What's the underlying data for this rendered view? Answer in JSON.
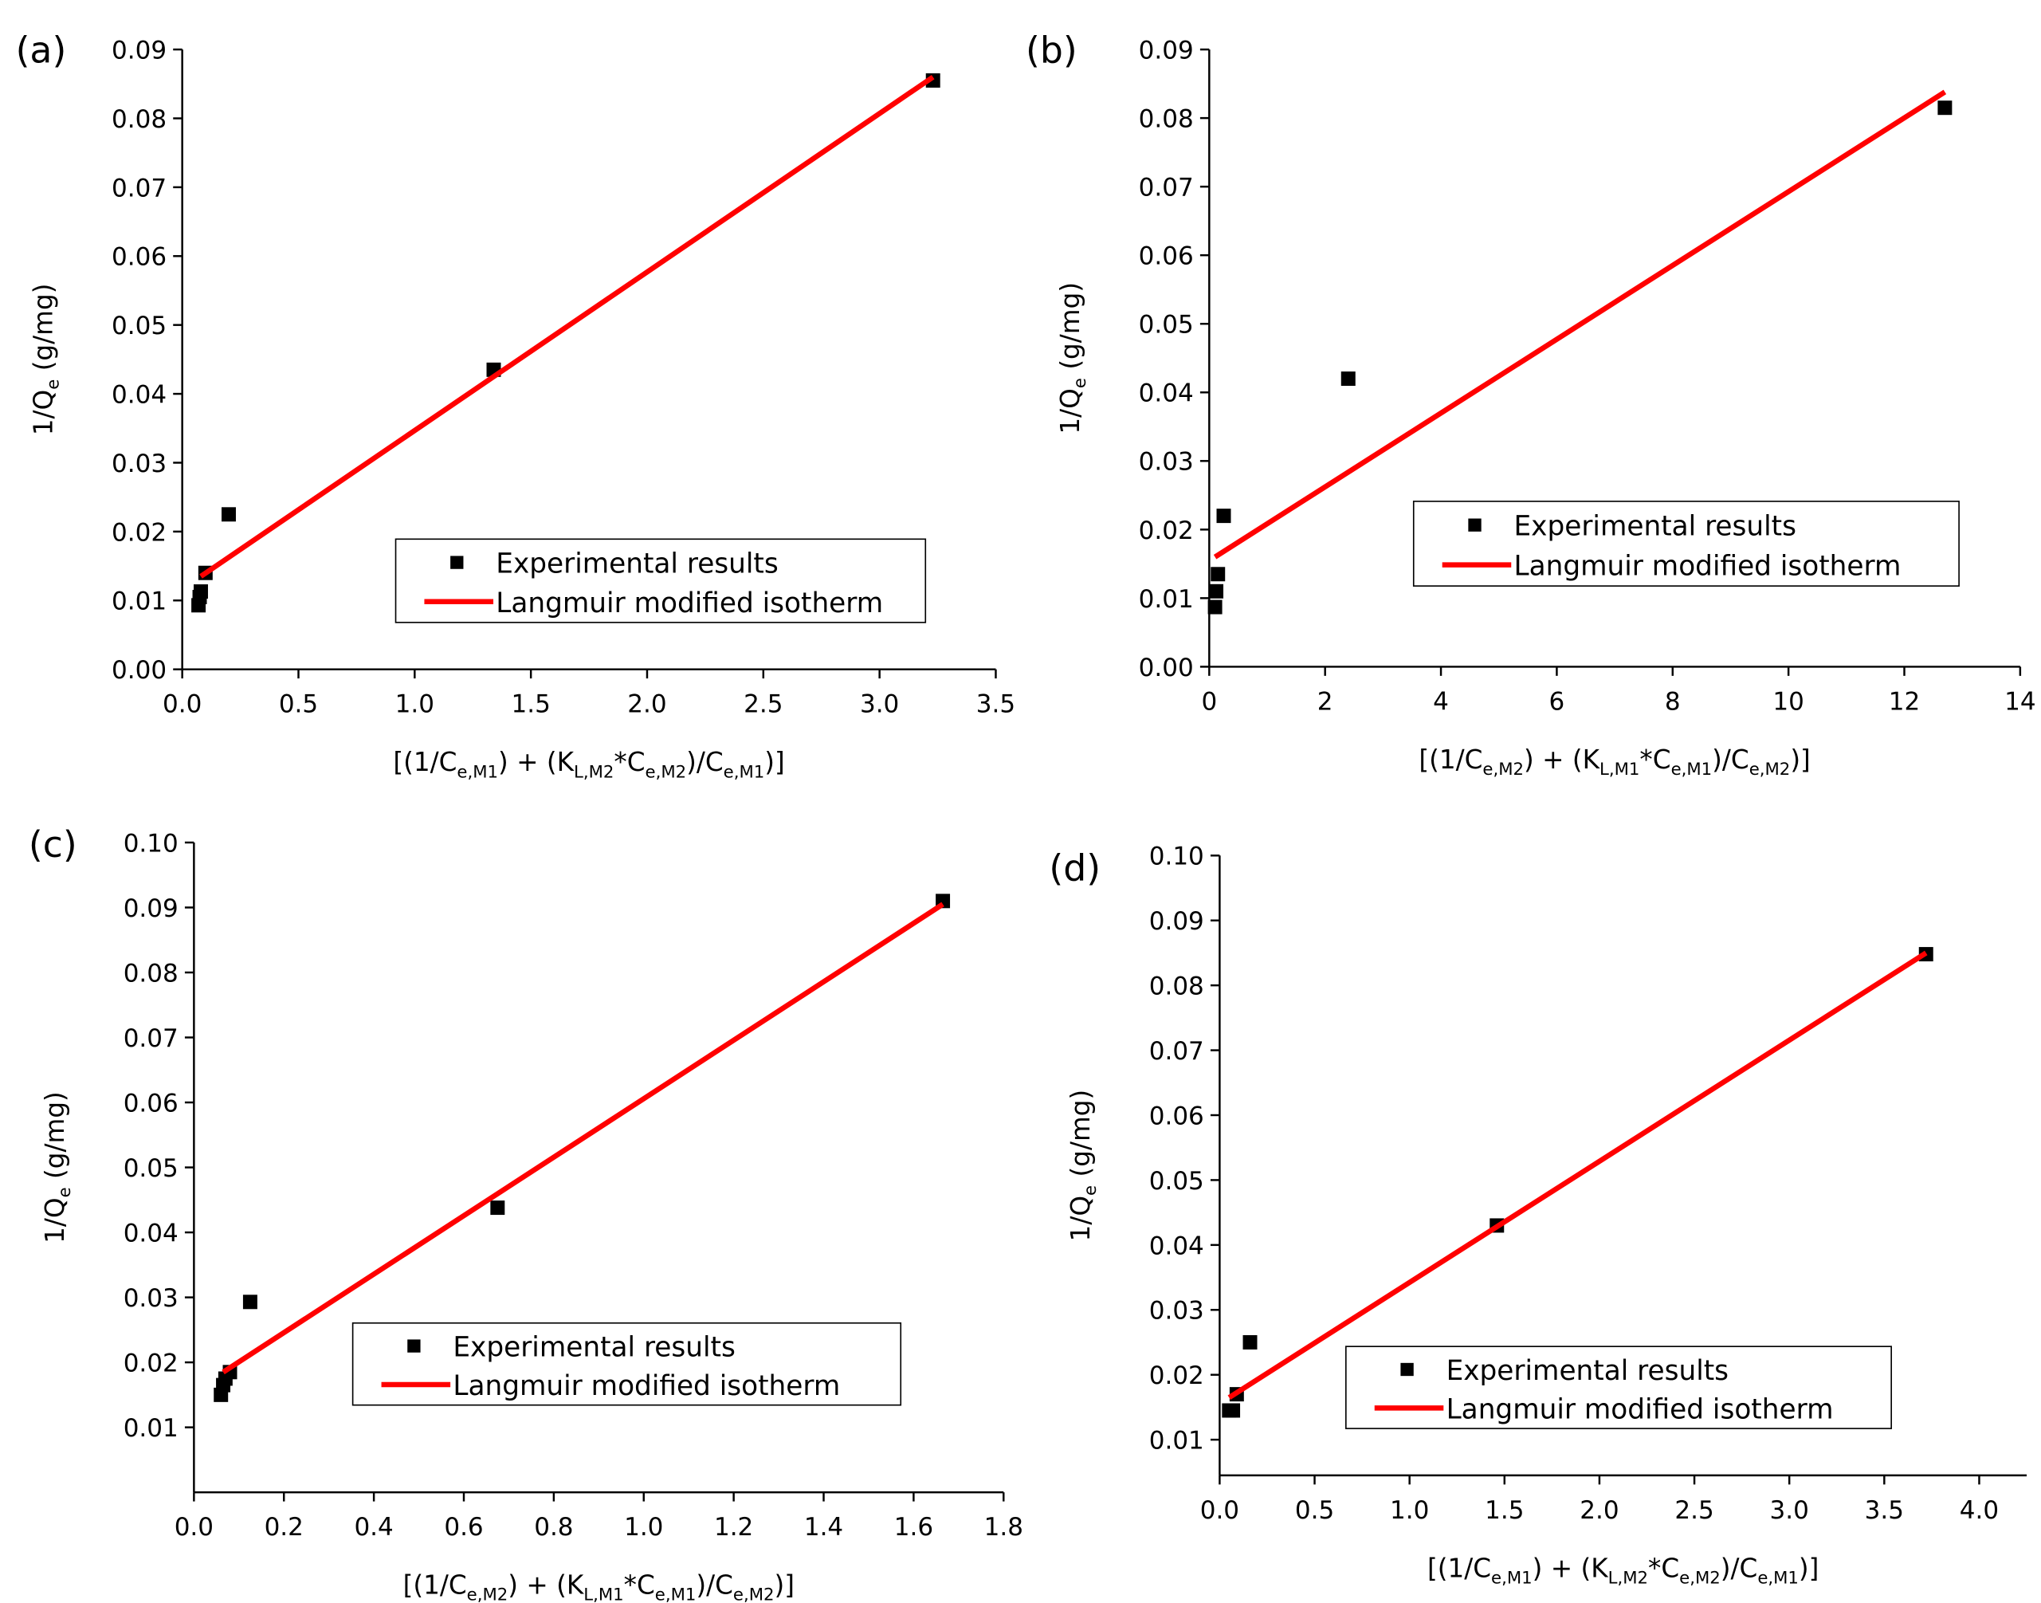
{
  "chart_data": [
    {
      "type": "scatter",
      "title": "(a)",
      "xlabel": [
        {
          "text": "[(1/C"
        },
        {
          "text": "e,M1",
          "sub": true
        },
        {
          "text": ") + (K"
        },
        {
          "text": "L,M2",
          "sub": true
        },
        {
          "text": "*C"
        },
        {
          "text": "e,M2",
          "sub": true
        },
        {
          "text": ")/C"
        },
        {
          "text": "e,M1",
          "sub": true
        },
        {
          "text": ")]"
        }
      ],
      "ylabel": [
        {
          "text": "1/Q"
        },
        {
          "text": "e",
          "sub": true
        },
        {
          "text": " (g/mg)"
        }
      ],
      "xlim": [
        0,
        3.5
      ],
      "xticks": [
        {
          "value": 0,
          "label": "0.0"
        },
        0.5,
        {
          "value": 1,
          "label": "1.0"
        },
        1.5,
        {
          "value": 2,
          "label": "2.0"
        },
        2.5,
        {
          "value": 3,
          "label": "3.0"
        },
        3.5
      ],
      "ylim": [
        0,
        0.09
      ],
      "yticks": [
        {
          "value": 0,
          "label": "0.00"
        },
        0.01,
        0.02,
        0.03,
        0.04,
        0.05,
        0.06,
        0.07,
        0.08,
        0.09
      ],
      "series": [
        {
          "name": "Experimental results",
          "color": "#000000",
          "x": [
            0.07,
            0.075,
            0.08,
            0.1,
            0.2,
            1.34,
            3.23
          ],
          "values": [
            0.0093,
            0.0105,
            0.0113,
            0.014,
            0.0225,
            0.0435,
            0.0855
          ]
        },
        {
          "name": "Langmuir modified isotherm",
          "color": "#ff0000",
          "x": [
            0.08,
            3.23
          ],
          "values": [
            0.0135,
            0.086
          ]
        }
      ]
    },
    {
      "type": "scatter",
      "title": "(b)",
      "xlabel": [
        {
          "text": "[(1/C"
        },
        {
          "text": "e,M2",
          "sub": true
        },
        {
          "text": ") + (K"
        },
        {
          "text": "L,M1",
          "sub": true
        },
        {
          "text": "*C"
        },
        {
          "text": "e,M1",
          "sub": true
        },
        {
          "text": ")/C"
        },
        {
          "text": "e,M2",
          "sub": true
        },
        {
          "text": ")]"
        }
      ],
      "ylabel": [
        {
          "text": "1/Q"
        },
        {
          "text": "e",
          "sub": true
        },
        {
          "text": " (g/mg)"
        }
      ],
      "xlim": [
        0,
        14
      ],
      "xticks": [
        0,
        2,
        4,
        6,
        8,
        10,
        12,
        14
      ],
      "ylim": [
        0,
        0.09
      ],
      "yticks": [
        {
          "value": 0,
          "label": "0.00"
        },
        0.01,
        0.02,
        0.03,
        0.04,
        0.05,
        0.06,
        0.07,
        0.08,
        0.09
      ],
      "series": [
        {
          "name": "Experimental results",
          "color": "#000000",
          "x": [
            0.1,
            0.12,
            0.15,
            0.25,
            2.4,
            12.7
          ],
          "values": [
            0.0087,
            0.011,
            0.0135,
            0.022,
            0.042,
            0.0815
          ]
        },
        {
          "name": "Langmuir modified isotherm",
          "color": "#ff0000",
          "x": [
            0.1,
            12.7
          ],
          "values": [
            0.016,
            0.0838
          ]
        }
      ]
    },
    {
      "type": "scatter",
      "title": "(c)",
      "xlabel": [
        {
          "text": "[(1/C"
        },
        {
          "text": "e,M2",
          "sub": true
        },
        {
          "text": ") + (K"
        },
        {
          "text": "L,M1",
          "sub": true
        },
        {
          "text": "*C"
        },
        {
          "text": "e,M1",
          "sub": true
        },
        {
          "text": ")/C"
        },
        {
          "text": "e,M2",
          "sub": true
        },
        {
          "text": ")]"
        }
      ],
      "ylabel": [
        {
          "text": "1/Q"
        },
        {
          "text": "e",
          "sub": true
        },
        {
          "text": " (g/mg)"
        }
      ],
      "xlim": [
        0,
        1.8
      ],
      "xticks": [
        {
          "value": 0,
          "label": "0.0"
        },
        0.2,
        0.4,
        0.6,
        0.8,
        {
          "value": 1,
          "label": "1.0"
        },
        1.2,
        1.4,
        1.6,
        1.8
      ],
      "ylim": [
        0,
        0.1
      ],
      "yticks": [
        0.01,
        0.02,
        0.03,
        0.04,
        0.05,
        0.06,
        0.07,
        0.08,
        0.09,
        {
          "value": 0.1,
          "label": "0.10"
        }
      ],
      "series": [
        {
          "name": "Experimental results",
          "color": "#000000",
          "x": [
            0.06,
            0.065,
            0.07,
            0.08,
            0.125,
            0.675,
            1.665
          ],
          "values": [
            0.015,
            0.0165,
            0.0175,
            0.0185,
            0.0293,
            0.0438,
            0.091
          ]
        },
        {
          "name": "Langmuir modified isotherm",
          "color": "#ff0000",
          "x": [
            0.065,
            1.665
          ],
          "values": [
            0.0185,
            0.0905
          ]
        }
      ]
    },
    {
      "type": "scatter",
      "title": "(d)",
      "xlabel": [
        {
          "text": "[(1/C"
        },
        {
          "text": "e,M1",
          "sub": true
        },
        {
          "text": ") + (K"
        },
        {
          "text": "L,M2",
          "sub": true
        },
        {
          "text": "*C"
        },
        {
          "text": "e,M2",
          "sub": true
        },
        {
          "text": ")/C"
        },
        {
          "text": "e,M1",
          "sub": true
        },
        {
          "text": ")]"
        }
      ],
      "ylabel": [
        {
          "text": "1/Q"
        },
        {
          "text": "e",
          "sub": true
        },
        {
          "text": " (g/mg)"
        }
      ],
      "xlim": [
        0,
        4.25
      ],
      "xticks": [
        {
          "value": 0,
          "label": "0.0"
        },
        0.5,
        {
          "value": 1,
          "label": "1.0"
        },
        1.5,
        {
          "value": 2,
          "label": "2.0"
        },
        2.5,
        {
          "value": 3,
          "label": "3.0"
        },
        3.5,
        {
          "value": 4,
          "label": "4.0"
        }
      ],
      "ylim": [
        0.0045,
        0.1
      ],
      "yticks": [
        0.01,
        0.02,
        0.03,
        0.04,
        0.05,
        0.06,
        0.07,
        0.08,
        0.09,
        {
          "value": 0.1,
          "label": "0.10"
        }
      ],
      "series": [
        {
          "name": "Experimental results",
          "color": "#000000",
          "x": [
            0.05,
            0.07,
            0.09,
            0.16,
            1.46,
            3.72
          ],
          "values": [
            0.0145,
            0.0145,
            0.017,
            0.025,
            0.043,
            0.0848
          ]
        },
        {
          "name": "Langmuir modified isotherm",
          "color": "#ff0000",
          "x": [
            0.05,
            3.72
          ],
          "values": [
            0.0165,
            0.085
          ]
        }
      ]
    }
  ]
}
